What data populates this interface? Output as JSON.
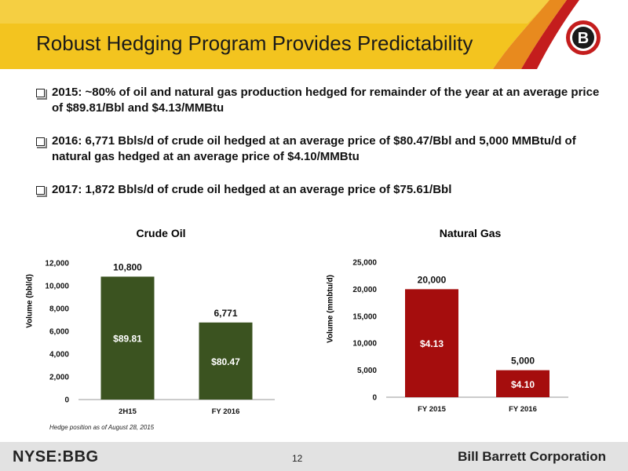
{
  "title": "Robust Hedging Program Provides Predictability",
  "logo_letter": "B",
  "bullets": [
    "2015:  ~80% of oil and natural gas production hedged for remainder of the year at an average price of $89.81/Bbl and $4.13/MMBtu",
    "2016:  6,771 Bbls/d of crude oil hedged at an average price of $80.47/Bbl and 5,000 MMBtu/d of natural gas hedged at an average price of $4.10/MMBtu",
    "2017:  1,872 Bbls/d of crude oil hedged at an average price of $75.61/Bbl"
  ],
  "footnote": "Hedge position as of August 28, 2015",
  "footer": {
    "ticker": "NYSE:BBG",
    "page_number": "12",
    "company": "Bill Barrett Corporation"
  },
  "colors": {
    "oil_bar": "#3b5320",
    "gas_bar": "#a50d0d",
    "header_yellow": "#f2c21b",
    "header_orange": "#e88a1e",
    "header_red": "#c41d1d"
  },
  "chart_data": [
    {
      "type": "bar",
      "title": "Crude Oil",
      "ylabel": "Volume (bbl/d)",
      "xlabel": "",
      "categories": [
        "2H15",
        "FY 2016"
      ],
      "values": [
        10800,
        6771
      ],
      "value_labels": [
        "10,800",
        "6,771"
      ],
      "price_labels": [
        "$89.81",
        "$80.47"
      ],
      "yticks": [
        "0",
        "2,000",
        "4,000",
        "6,000",
        "8,000",
        "10,000",
        "12,000"
      ],
      "ylim": [
        0,
        12000
      ],
      "grid": false,
      "color": "#3b5320"
    },
    {
      "type": "bar",
      "title": "Natural Gas",
      "ylabel": "Volume (mmbtu/d)",
      "xlabel": "",
      "categories": [
        "FY 2015",
        "FY 2016"
      ],
      "values": [
        20000,
        5000
      ],
      "value_labels": [
        "20,000",
        "5,000"
      ],
      "price_labels": [
        "$4.13",
        "$4.10"
      ],
      "yticks": [
        "0",
        "5,000",
        "10,000",
        "15,000",
        "20,000",
        "25,000"
      ],
      "ylim": [
        0,
        25000
      ],
      "grid": false,
      "color": "#a50d0d"
    }
  ]
}
